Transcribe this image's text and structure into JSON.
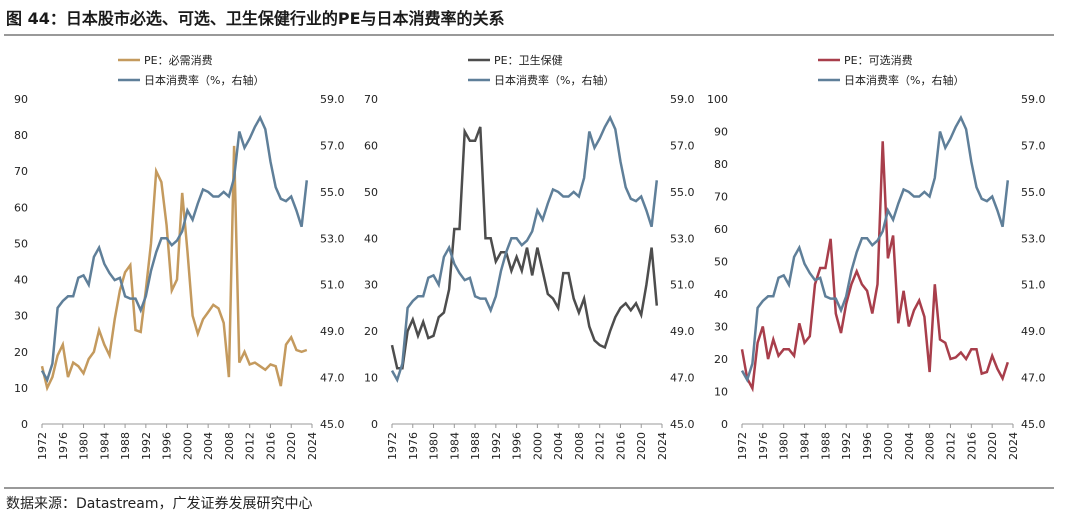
{
  "title": "图 44：日本股市必选、可选、卫生保健行业的PE与日本消费率的关系",
  "source": "数据来源：Datastream，广发证券发展研究中心",
  "chart_data": [
    {
      "type": "line",
      "x": [
        1972,
        1973,
        1974,
        1975,
        1976,
        1977,
        1978,
        1979,
        1980,
        1981,
        1982,
        1983,
        1984,
        1985,
        1986,
        1987,
        1988,
        1989,
        1990,
        1991,
        1992,
        1993,
        1994,
        1995,
        1996,
        1997,
        1998,
        1999,
        2000,
        2001,
        2002,
        2003,
        2004,
        2005,
        2006,
        2007,
        2008,
        2009,
        2010,
        2011,
        2012,
        2013,
        2014,
        2015,
        2016,
        2017,
        2018,
        2019,
        2020,
        2021,
        2022,
        2023
      ],
      "xlim": [
        1972,
        2024
      ],
      "xticks": [
        1972,
        1976,
        1980,
        1984,
        1988,
        1992,
        1996,
        2000,
        2004,
        2008,
        2012,
        2016,
        2020,
        2024
      ],
      "ylim": [
        0,
        90
      ],
      "yticks": [
        0,
        10,
        20,
        30,
        40,
        50,
        60,
        70,
        80,
        90
      ],
      "y2lim": [
        45,
        59
      ],
      "y2ticks": [
        {
          "value": 45,
          "label": "45.0"
        },
        {
          "value": 47,
          "label": "47.0"
        },
        {
          "value": 49,
          "label": "49.0"
        },
        {
          "value": 51,
          "label": "51.0"
        },
        {
          "value": 53,
          "label": "53.0"
        },
        {
          "value": 55,
          "label": "55.0"
        },
        {
          "value": 57,
          "label": "57.0"
        },
        {
          "value": 59,
          "label": "59.0"
        }
      ],
      "series": [
        {
          "name": "PE：必需消费",
          "color": "#c49a5e",
          "values": [
            16,
            10,
            13,
            19,
            22,
            13,
            17,
            16,
            14,
            18,
            20,
            26,
            22,
            19,
            29,
            37,
            42,
            44,
            26,
            25.5,
            37,
            50,
            70,
            67,
            55,
            37,
            40,
            64,
            48,
            30,
            25,
            29,
            31,
            33,
            32,
            28,
            13,
            77,
            17,
            20,
            16.5,
            17,
            16,
            15,
            16.5,
            16,
            10.5,
            22,
            24,
            20.5,
            20,
            20.5
          ]
        },
        {
          "name": "日本消费率（%，右轴）",
          "color": "#5f7f99",
          "axis": "y2",
          "values": [
            47.3,
            46.9,
            47.6,
            50.0,
            50.3,
            50.5,
            50.5,
            51.3,
            51.4,
            51.0,
            52.2,
            52.6,
            51.9,
            51.5,
            51.2,
            51.3,
            50.5,
            50.4,
            50.4,
            49.9,
            50.5,
            51.6,
            52.4,
            53.0,
            53.0,
            52.7,
            52.9,
            53.3,
            54.2,
            53.8,
            54.5,
            55.1,
            55.0,
            54.8,
            54.8,
            55.0,
            54.8,
            55.6,
            57.6,
            56.9,
            57.3,
            57.8,
            58.2,
            57.7,
            56.3,
            55.2,
            54.7,
            54.6,
            54.8,
            54.2,
            53.5,
            55.5
          ]
        }
      ]
    },
    {
      "type": "line",
      "x": [
        1972,
        1973,
        1974,
        1975,
        1976,
        1977,
        1978,
        1979,
        1980,
        1981,
        1982,
        1983,
        1984,
        1985,
        1986,
        1987,
        1988,
        1989,
        1990,
        1991,
        1992,
        1993,
        1994,
        1995,
        1996,
        1997,
        1998,
        1999,
        2000,
        2001,
        2002,
        2003,
        2004,
        2005,
        2006,
        2007,
        2008,
        2009,
        2010,
        2011,
        2012,
        2013,
        2014,
        2015,
        2016,
        2017,
        2018,
        2019,
        2020,
        2021,
        2022,
        2023
      ],
      "xlim": [
        1972,
        2024
      ],
      "xticks": [
        1972,
        1976,
        1980,
        1984,
        1988,
        1992,
        1996,
        2000,
        2004,
        2008,
        2012,
        2016,
        2020,
        2024
      ],
      "ylim": [
        0,
        70
      ],
      "yticks": [
        0,
        10,
        20,
        30,
        40,
        50,
        60,
        70
      ],
      "y2lim": [
        45,
        59
      ],
      "y2ticks": [
        {
          "value": 45,
          "label": "45.0"
        },
        {
          "value": 47,
          "label": "47.0"
        },
        {
          "value": 49,
          "label": "49.0"
        },
        {
          "value": 51,
          "label": "51.0"
        },
        {
          "value": 53,
          "label": "53.0"
        },
        {
          "value": 55,
          "label": "55.0"
        },
        {
          "value": 57,
          "label": "57.0"
        },
        {
          "value": 59,
          "label": "59.0"
        }
      ],
      "series": [
        {
          "name": "PE：卫生保健",
          "color": "#4d4d4d",
          "values": [
            17,
            12,
            12,
            20,
            22.5,
            19,
            22,
            18.5,
            19,
            23,
            24,
            29,
            42,
            42,
            63,
            61,
            61,
            64,
            40,
            40,
            35,
            37,
            37,
            33,
            36,
            33,
            38,
            32,
            38,
            33,
            28,
            27,
            25,
            32.5,
            32.5,
            27,
            24,
            27,
            21,
            18,
            17,
            16.5,
            20,
            23,
            25,
            26,
            24.5,
            26,
            23.5,
            30,
            38,
            25.5
          ]
        },
        {
          "name": "日本消费率（%，右轴）",
          "color": "#5f7f99",
          "axis": "y2",
          "values": [
            47.3,
            46.9,
            47.6,
            50.0,
            50.3,
            50.5,
            50.5,
            51.3,
            51.4,
            51.0,
            52.2,
            52.6,
            51.9,
            51.5,
            51.2,
            51.3,
            50.5,
            50.4,
            50.4,
            49.9,
            50.5,
            51.6,
            52.4,
            53.0,
            53.0,
            52.7,
            52.9,
            53.3,
            54.2,
            53.8,
            54.5,
            55.1,
            55.0,
            54.8,
            54.8,
            55.0,
            54.8,
            55.6,
            57.6,
            56.9,
            57.3,
            57.8,
            58.2,
            57.7,
            56.3,
            55.2,
            54.7,
            54.6,
            54.8,
            54.2,
            53.5,
            55.5
          ]
        }
      ]
    },
    {
      "type": "line",
      "x": [
        1972,
        1973,
        1974,
        1975,
        1976,
        1977,
        1978,
        1979,
        1980,
        1981,
        1982,
        1983,
        1984,
        1985,
        1986,
        1987,
        1988,
        1989,
        1990,
        1991,
        1992,
        1993,
        1994,
        1995,
        1996,
        1997,
        1998,
        1999,
        2000,
        2001,
        2002,
        2003,
        2004,
        2005,
        2006,
        2007,
        2008,
        2009,
        2010,
        2011,
        2012,
        2013,
        2014,
        2015,
        2016,
        2017,
        2018,
        2019,
        2020,
        2021,
        2022,
        2023
      ],
      "xlim": [
        1972,
        2024
      ],
      "xticks": [
        1972,
        1976,
        1980,
        1984,
        1988,
        1992,
        1996,
        2000,
        2004,
        2008,
        2012,
        2016,
        2020,
        2024
      ],
      "ylim": [
        0,
        100
      ],
      "yticks": [
        0,
        10,
        20,
        30,
        40,
        50,
        60,
        70,
        80,
        90,
        100
      ],
      "y2lim": [
        45,
        59
      ],
      "y2ticks": [
        {
          "value": 45,
          "label": "45.0"
        },
        {
          "value": 47,
          "label": "47.0"
        },
        {
          "value": 49,
          "label": "49.0"
        },
        {
          "value": 51,
          "label": "51.0"
        },
        {
          "value": 53,
          "label": "53.0"
        },
        {
          "value": 55,
          "label": "55.0"
        },
        {
          "value": 57,
          "label": "57.0"
        },
        {
          "value": 59,
          "label": "59.0"
        }
      ],
      "series": [
        {
          "name": "PE：可选消费",
          "color": "#a83e4b",
          "values": [
            23,
            14,
            11,
            25,
            30,
            20,
            26,
            21,
            23,
            23,
            21,
            31,
            25,
            27,
            43,
            48,
            48,
            57,
            34,
            28,
            37,
            43,
            47,
            43,
            41,
            34,
            43,
            87,
            51,
            58,
            31,
            41,
            30,
            35,
            38,
            33,
            16,
            43,
            26,
            25,
            20,
            20.5,
            22,
            20,
            23,
            23,
            15.5,
            16,
            21,
            17,
            14,
            19
          ]
        },
        {
          "name": "日本消费率（%，右轴）",
          "color": "#5f7f99",
          "axis": "y2",
          "values": [
            47.3,
            46.9,
            47.6,
            50.0,
            50.3,
            50.5,
            50.5,
            51.3,
            51.4,
            51.0,
            52.2,
            52.6,
            51.9,
            51.5,
            51.2,
            51.3,
            50.5,
            50.4,
            50.4,
            49.9,
            50.5,
            51.6,
            52.4,
            53.0,
            53.0,
            52.7,
            52.9,
            53.3,
            54.2,
            53.8,
            54.5,
            55.1,
            55.0,
            54.8,
            54.8,
            55.0,
            54.8,
            55.6,
            57.6,
            56.9,
            57.3,
            57.8,
            58.2,
            57.7,
            56.3,
            55.2,
            54.7,
            54.6,
            54.8,
            54.2,
            53.5,
            55.5
          ]
        }
      ]
    }
  ]
}
